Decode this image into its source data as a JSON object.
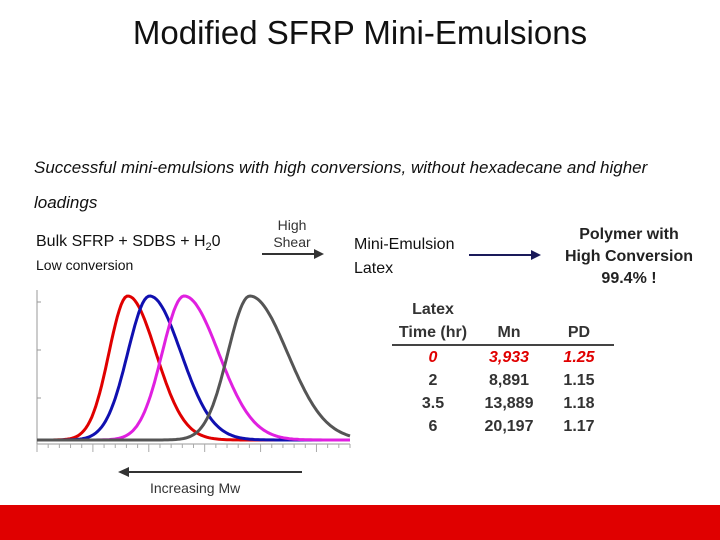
{
  "slide": {
    "title": "Modified SFRP Mini-Emulsions",
    "subtitle": "Successful mini-emulsions with high conversions, without hexadecane and higher loadings",
    "process": {
      "bulk_label": "Bulk SFRP + SDBS + H",
      "bulk_sub": "2",
      "bulk_tail": "0",
      "low_conversion": "Low conversion",
      "high_shear_line1": "High",
      "high_shear_line2": "Shear",
      "mini_emulsion_line1": "Mini-Emulsion",
      "mini_emulsion_line2": "Latex",
      "polymer_line1": "Polymer with",
      "polymer_line2": "High Conversion",
      "polymer_line3": "99.4% !"
    },
    "axis_caption": "Increasing Mw",
    "colors": {
      "accent_red": "#e00000",
      "footer": "#e00000"
    }
  },
  "table": {
    "header_top": [
      "Latex",
      "",
      ""
    ],
    "header": [
      "Time (hr)",
      "Mn",
      "PD"
    ],
    "rows": [
      [
        "0",
        "3,933",
        "1.25"
      ],
      [
        "2",
        "8,891",
        "1.15"
      ],
      [
        "3.5",
        "13,889",
        "1.18"
      ],
      [
        "6",
        "20,197",
        "1.17"
      ]
    ]
  },
  "chart_data": {
    "type": "line",
    "title": "",
    "xlabel": "Increasing Mw",
    "ylabel": "",
    "series": [
      {
        "color": "#e00000",
        "peak": 0.29,
        "width_left": 0.06,
        "width_right": 0.09
      },
      {
        "color": "#1010b0",
        "peak": 0.36,
        "width_left": 0.07,
        "width_right": 0.1
      },
      {
        "color": "#e020e0",
        "peak": 0.47,
        "width_left": 0.07,
        "width_right": 0.11
      },
      {
        "color": "#555555",
        "peak": 0.68,
        "width_left": 0.07,
        "width_right": 0.12
      }
    ]
  }
}
